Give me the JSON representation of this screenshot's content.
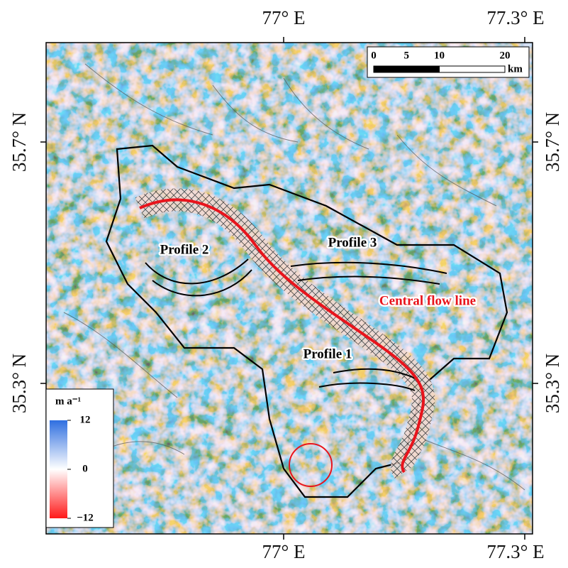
{
  "map": {
    "lon_labels": [
      "77° E",
      "77.3° E"
    ],
    "lat_labels": [
      "35.7° N",
      "35.3° N"
    ],
    "scale_bar": {
      "ticks": [
        0,
        5,
        10,
        20
      ],
      "unit": "km"
    },
    "legend": {
      "title": "m a⁻¹",
      "ticks": [
        12,
        0,
        {
          "value": -12,
          "label": "−12"
        }
      ],
      "lim": [
        -12,
        12
      ],
      "colors": [
        "#2f6fe0",
        "#ffffff",
        "#ff1a1a"
      ]
    },
    "labels": [
      "Profile 1",
      "Profile 2",
      "Profile 3",
      "Central flow line"
    ],
    "flow_line_color": "#e8141c"
  }
}
